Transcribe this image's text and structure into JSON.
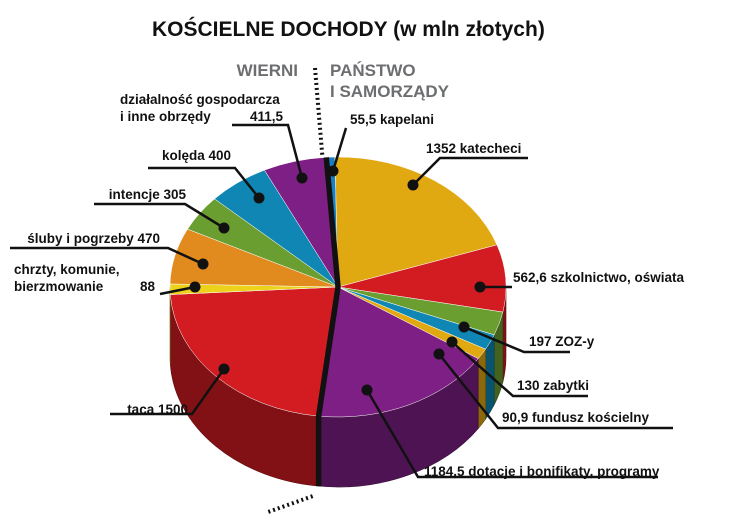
{
  "chart_data": {
    "type": "pie",
    "title": "KOŚCIELNE DOCHODY (w mln złotych)",
    "groups": [
      {
        "name": "WIERNI",
        "lines": [
          "WIERNI"
        ]
      },
      {
        "name": "PAŃSTWO I SAMORZĄDY",
        "lines": [
          "PAŃSTWO",
          "I SAMORZĄDY"
        ]
      }
    ],
    "slices": [
      {
        "group": "PAŃSTWO I SAMORZĄDY",
        "value": 55.5,
        "color": "#1a7fc1",
        "lines": [
          "55,5 kapelani"
        ]
      },
      {
        "group": "PAŃSTWO I SAMORZĄDY",
        "value": 1352,
        "color": "#e0a911",
        "lines": [
          "1352 katecheci"
        ]
      },
      {
        "group": "PAŃSTWO I SAMORZĄDY",
        "value": 562.6,
        "color": "#d21c22",
        "lines": [
          "562,6 szkolnictwo, oświata"
        ]
      },
      {
        "group": "PAŃSTWO I SAMORZĄDY",
        "value": 197,
        "color": "#6b9e31",
        "lines": [
          "197 ZOZ-y"
        ]
      },
      {
        "group": "PAŃSTWO I SAMORZĄDY",
        "value": 130,
        "color": "#0f86b3",
        "lines": [
          "130 zabytki"
        ]
      },
      {
        "group": "PAŃSTWO I SAMORZĄDY",
        "value": 90.9,
        "color": "#e0a911",
        "lines": [
          "90,9 fundusz kościelny"
        ]
      },
      {
        "group": "PAŃSTWO I SAMORZĄDY",
        "value": 1184.5,
        "color": "#7d1f84",
        "lines": [
          "1184,5 dotacje i bonifikaty, programy"
        ]
      },
      {
        "group": "WIERNI",
        "value": 1500,
        "color": "#d21c22",
        "lines": [
          "taca 1500"
        ]
      },
      {
        "group": "WIERNI",
        "value": 88,
        "color": "#ecd21a",
        "lines": [
          "chrzty, komunie,",
          "bierzmowanie",
          "88"
        ]
      },
      {
        "group": "WIERNI",
        "value": 470,
        "color": "#e18a1e",
        "lines": [
          "śluby i pogrzeby 470"
        ]
      },
      {
        "group": "WIERNI",
        "value": 305,
        "color": "#6b9e31",
        "lines": [
          "intencje 305"
        ]
      },
      {
        "group": "WIERNI",
        "value": 400,
        "color": "#0f86b3",
        "lines": [
          "kolęda 400"
        ]
      },
      {
        "group": "WIERNI",
        "value": 411.5,
        "color": "#7d1f84",
        "lines": [
          "działalność gospodarcza",
          "i inne obrzędy",
          "411,5"
        ]
      }
    ]
  }
}
